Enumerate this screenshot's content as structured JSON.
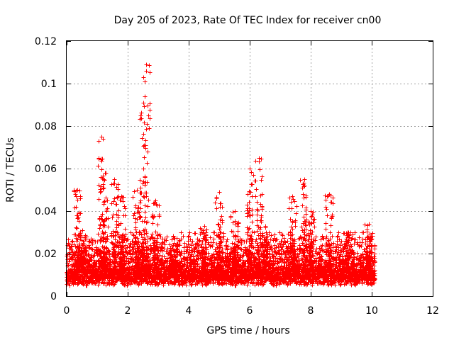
{
  "chart_data": {
    "type": "scatter",
    "title": "Day 205 of 2023, Rate Of TEC Index for receiver cn00",
    "xlabel": "GPS time / hours",
    "ylabel": "ROTI / TECUs",
    "xlim": [
      0,
      12
    ],
    "ylim": [
      0,
      0.12
    ],
    "x_ticks": [
      0,
      2,
      4,
      6,
      8,
      10,
      12
    ],
    "y_ticks": [
      0,
      0.02,
      0.04,
      0.06,
      0.08,
      0.1,
      0.12
    ],
    "x_tick_labels": [
      "0",
      "2",
      "4",
      "6",
      "8",
      "10",
      "12"
    ],
    "y_tick_labels": [
      "0",
      "0.02",
      "0.04",
      "0.06",
      "0.08",
      "0.1",
      "0.12"
    ],
    "grid": true,
    "marker": "+",
    "color": "#ff0000",
    "series": [
      {
        "name": "ROTI",
        "x_range": [
          0.0,
          10.1
        ],
        "baseline_range": [
          0.005,
          0.025
        ],
        "peaks": [
          {
            "x": 0.35,
            "y": 0.05
          },
          {
            "x": 0.5,
            "y": 0.031
          },
          {
            "x": 1.15,
            "y": 0.075
          },
          {
            "x": 1.25,
            "y": 0.058
          },
          {
            "x": 1.55,
            "y": 0.055
          },
          {
            "x": 1.8,
            "y": 0.047
          },
          {
            "x": 2.3,
            "y": 0.05
          },
          {
            "x": 2.5,
            "y": 0.091
          },
          {
            "x": 2.6,
            "y": 0.109
          },
          {
            "x": 2.9,
            "y": 0.045
          },
          {
            "x": 3.5,
            "y": 0.025
          },
          {
            "x": 4.5,
            "y": 0.033
          },
          {
            "x": 5.0,
            "y": 0.049
          },
          {
            "x": 5.5,
            "y": 0.04
          },
          {
            "x": 6.0,
            "y": 0.06
          },
          {
            "x": 6.3,
            "y": 0.065
          },
          {
            "x": 6.5,
            "y": 0.033
          },
          {
            "x": 7.4,
            "y": 0.047
          },
          {
            "x": 7.8,
            "y": 0.055
          },
          {
            "x": 8.0,
            "y": 0.04
          },
          {
            "x": 8.6,
            "y": 0.048
          },
          {
            "x": 9.2,
            "y": 0.03
          },
          {
            "x": 9.9,
            "y": 0.034
          }
        ]
      }
    ]
  }
}
